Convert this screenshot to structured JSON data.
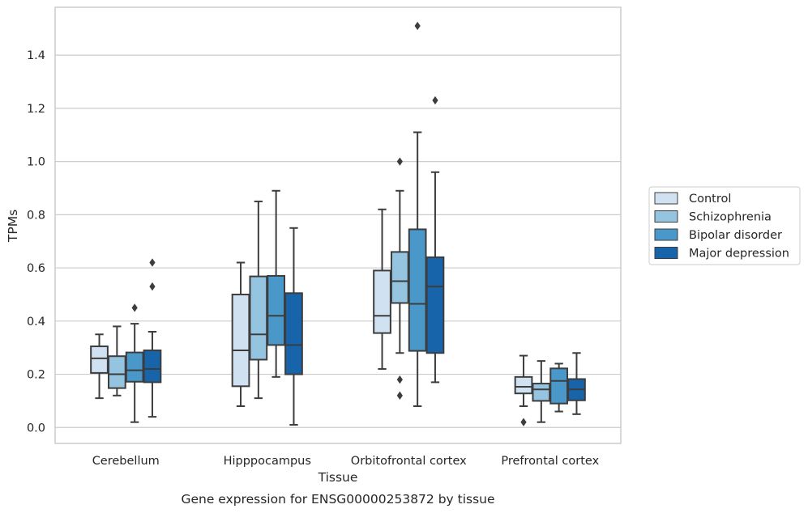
{
  "chart_data": {
    "type": "box",
    "xlabel": "Tissue",
    "ylabel": "TPMs",
    "caption": "Gene expression for ENSG00000253872 by tissue",
    "ylim": [
      -0.06,
      1.58
    ],
    "yticks": [
      "0.0",
      "0.2",
      "0.4",
      "0.6",
      "0.8",
      "1.0",
      "1.2",
      "1.4"
    ],
    "grid": "horizontal",
    "legend_position": "right",
    "categories": [
      "Cerebellum",
      "Hipppocampus",
      "Orbitofrontal cortex",
      "Prefrontal cortex"
    ],
    "series": [
      {
        "name": "Control",
        "color": "#d0e1f2",
        "boxes": [
          {
            "whislo": 0.11,
            "q1": 0.205,
            "med": 0.26,
            "q3": 0.305,
            "whishi": 0.35,
            "fliers": []
          },
          {
            "whislo": 0.08,
            "q1": 0.155,
            "med": 0.29,
            "q3": 0.5,
            "whishi": 0.62,
            "fliers": []
          },
          {
            "whislo": 0.22,
            "q1": 0.355,
            "med": 0.42,
            "q3": 0.59,
            "whishi": 0.82,
            "fliers": []
          },
          {
            "whislo": 0.08,
            "q1": 0.128,
            "med": 0.153,
            "q3": 0.19,
            "whishi": 0.27,
            "fliers": [
              0.02
            ]
          }
        ]
      },
      {
        "name": "Schizophrenia",
        "color": "#94c4df",
        "boxes": [
          {
            "whislo": 0.12,
            "q1": 0.148,
            "med": 0.2,
            "q3": 0.268,
            "whishi": 0.38,
            "fliers": []
          },
          {
            "whislo": 0.11,
            "q1": 0.255,
            "med": 0.35,
            "q3": 0.568,
            "whishi": 0.85,
            "fliers": []
          },
          {
            "whislo": 0.28,
            "q1": 0.468,
            "med": 0.55,
            "q3": 0.66,
            "whishi": 0.89,
            "fliers": [
              1.0,
              0.18,
              0.12
            ]
          },
          {
            "whislo": 0.02,
            "q1": 0.1,
            "med": 0.143,
            "q3": 0.165,
            "whishi": 0.25,
            "fliers": []
          }
        ]
      },
      {
        "name": "Bipolar disorder",
        "color": "#4a98c9",
        "boxes": [
          {
            "whislo": 0.02,
            "q1": 0.172,
            "med": 0.215,
            "q3": 0.282,
            "whishi": 0.39,
            "fliers": [
              0.45
            ]
          },
          {
            "whislo": 0.19,
            "q1": 0.31,
            "med": 0.42,
            "q3": 0.57,
            "whishi": 0.89,
            "fliers": []
          },
          {
            "whislo": 0.08,
            "q1": 0.288,
            "med": 0.465,
            "q3": 0.745,
            "whishi": 1.11,
            "fliers": [
              1.51
            ]
          },
          {
            "whislo": 0.06,
            "q1": 0.09,
            "med": 0.175,
            "q3": 0.222,
            "whishi": 0.24,
            "fliers": []
          }
        ]
      },
      {
        "name": "Major depression",
        "color": "#1764ab",
        "boxes": [
          {
            "whislo": 0.04,
            "q1": 0.17,
            "med": 0.22,
            "q3": 0.29,
            "whishi": 0.36,
            "fliers": [
              0.62,
              0.53
            ]
          },
          {
            "whislo": 0.01,
            "q1": 0.2,
            "med": 0.31,
            "q3": 0.505,
            "whishi": 0.75,
            "fliers": []
          },
          {
            "whislo": 0.17,
            "q1": 0.28,
            "med": 0.53,
            "q3": 0.64,
            "whishi": 0.96,
            "fliers": [
              1.23
            ]
          },
          {
            "whislo": 0.05,
            "q1": 0.102,
            "med": 0.143,
            "q3": 0.182,
            "whishi": 0.28,
            "fliers": []
          }
        ]
      }
    ]
  }
}
